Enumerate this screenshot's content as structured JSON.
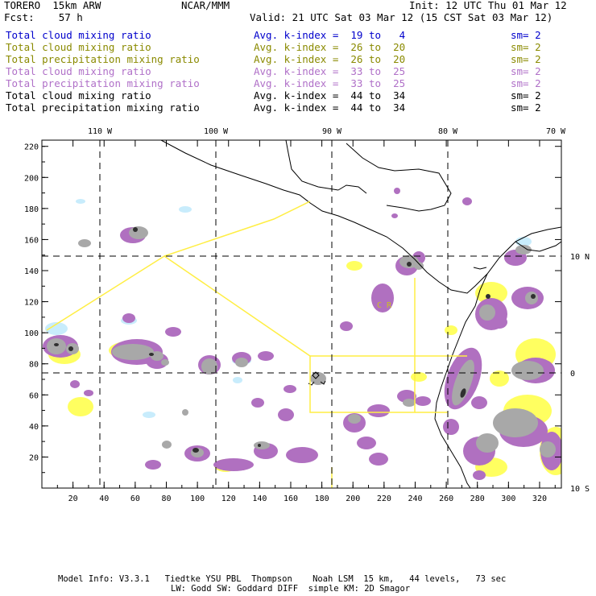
{
  "header": {
    "model": "TORERO  15km ARW",
    "org": "NCAR/MMM",
    "init": "Init: 12 UTC Thu 01 Mar 12",
    "fcst": "Fcst:    57 h",
    "valid": "Valid: 21 UTC Sat 03 Mar 12 (15 CST Sat 03 Mar 12)"
  },
  "legend": [
    {
      "field": "Total cloud mixing ratio",
      "k": "Avg. k-index =  19 to   4",
      "sm": "sm= 2",
      "color": "#0000cc"
    },
    {
      "field": "Total cloud mixing ratio",
      "k": "Avg. k-index =  26 to  20",
      "sm": "sm= 2",
      "color": "#8a8a00"
    },
    {
      "field": "Total precipitation mixing ratio",
      "k": "Avg. k-index =  26 to  20",
      "sm": "sm= 2",
      "color": "#8a8a00"
    },
    {
      "field": "Total cloud mixing ratio",
      "k": "Avg. k-index =  33 to  25",
      "sm": "sm= 2",
      "color": "#b070c8"
    },
    {
      "field": "Total precipitation mixing ratio",
      "k": "Avg. k-index =  33 to  25",
      "sm": "sm= 2",
      "color": "#b070c8"
    },
    {
      "field": "Total cloud mixing ratio",
      "k": "Avg. k-index =  44 to  34",
      "sm": "sm= 2",
      "color": "#000000"
    },
    {
      "field": "Total precipitation mixing ratio",
      "k": "Avg. k-index =  44 to  34",
      "sm": "sm= 2",
      "color": "#000000"
    }
  ],
  "axes": {
    "top_lon_labels": [
      "110 W",
      "100 W",
      "90 W",
      "80 W",
      "70 W"
    ],
    "right_lat_labels": [
      "10 N",
      "0",
      "10 S"
    ],
    "x_ticks": [
      "20",
      "40",
      "60",
      "80",
      "100",
      "120",
      "140",
      "160",
      "180",
      "200",
      "220",
      "240",
      "260",
      "280",
      "300",
      "320"
    ],
    "y_ticks": [
      "20",
      "40",
      "60",
      "80",
      "100",
      "120",
      "140",
      "160",
      "180",
      "200",
      "220"
    ]
  },
  "colors": {
    "light_blue": "#c8ecfc",
    "yellow": "#ffff60",
    "purple": "#b070c0",
    "gray": "#a8a8a8",
    "dark": "#303030",
    "domain_lines": "#ffee44"
  },
  "annotations": {
    "box_label": "C  R"
  },
  "footer": {
    "line1": "Model Info: V3.3.1   Tiedtke YSU PBL  Thompson    Noah LSM  15 km,   44 levels,   73 sec",
    "line2": "LW: Godd SW: Goddard DIFF  simple KM: 2D Smagor"
  }
}
